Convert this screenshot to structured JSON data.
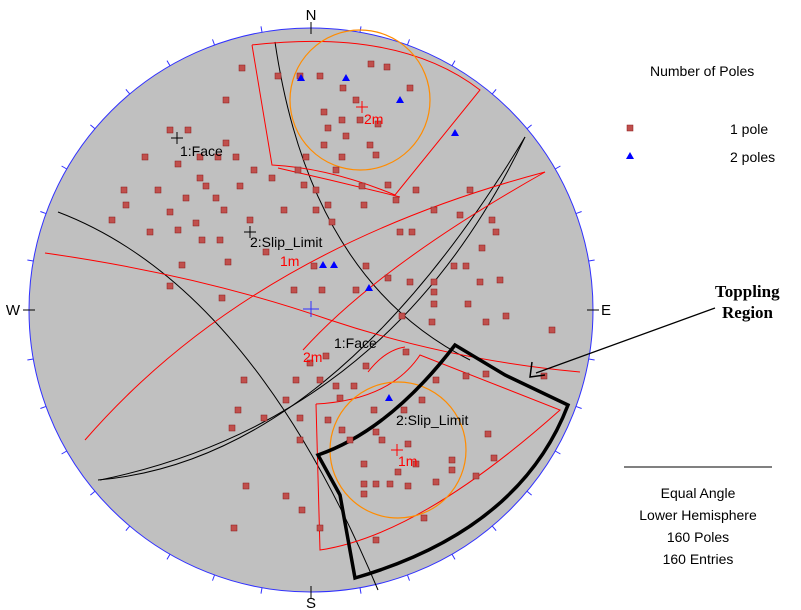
{
  "compass": {
    "north": "N",
    "south": "S",
    "east": "E",
    "west": "W"
  },
  "legend": {
    "title": "Number of Poles",
    "items": [
      {
        "label": "1 pole",
        "color": "#c0504d",
        "symbol": "square"
      },
      {
        "label": "2 poles",
        "color": "#0000ff",
        "symbol": "triangle"
      }
    ]
  },
  "info": {
    "projection": "Equal Angle",
    "hemisphere": "Lower Hemisphere",
    "poles": "160 Poles",
    "entries": "160 Entries"
  },
  "annotations": {
    "face_1_a": "1:Face",
    "face_1_b": "1:Face",
    "slip_limit_a": "2:Slip_Limit",
    "slip_limit_b": "2:Slip_Limit",
    "cone_1m_a": "1m",
    "cone_1m_b": "1m",
    "cone_2m_a": "2m",
    "cone_2m_b": "2m"
  },
  "callout": {
    "line1": "Toppling",
    "line2": "Region"
  },
  "colors": {
    "net_fill": "#c0c0c0",
    "pole": "#c0504d",
    "pole_edge": "#8b1a1a",
    "pole2": "#0000ff",
    "great_circle": "#000000",
    "friction": "#ff0000",
    "contour": "#ff8c00",
    "tick": "#0000ff",
    "region": "#000000"
  }
}
